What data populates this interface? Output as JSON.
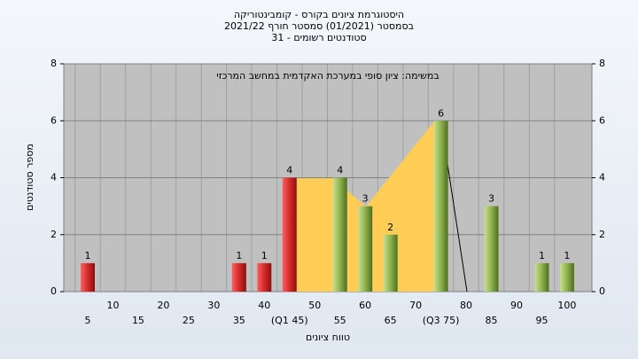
{
  "chart_data": {
    "type": "bar",
    "title": [
      "היסטוגרמת ציונים בקורס - קומבינטוריקה",
      "בסמסטר (01/2021) סמסטר חורף 2021/22",
      "סטודנטים רשומים - 31"
    ],
    "subtitle": "במשימה: ציון סופי במערכת האקדמית במחשב המרכזי",
    "x_label": "טווח ציונים",
    "y_label": "מספר סטודנטים",
    "categories": [
      "5",
      "10",
      "15",
      "20",
      "25",
      "30",
      "35",
      "40",
      "(Q1 45)",
      "50",
      "55",
      "60",
      "65",
      "70",
      "(Q3 75)",
      "80",
      "85",
      "90",
      "95",
      "100"
    ],
    "values": [
      1,
      0,
      0,
      0,
      0,
      0,
      1,
      1,
      4,
      0,
      4,
      3,
      2,
      0,
      6,
      0,
      3,
      0,
      1,
      1
    ],
    "colors": {
      "low": "#d42a2a",
      "high": "#8fb24e"
    },
    "ylim": [
      0,
      8
    ],
    "yticks": [
      0,
      2,
      4,
      6,
      8
    ],
    "grid": true
  }
}
